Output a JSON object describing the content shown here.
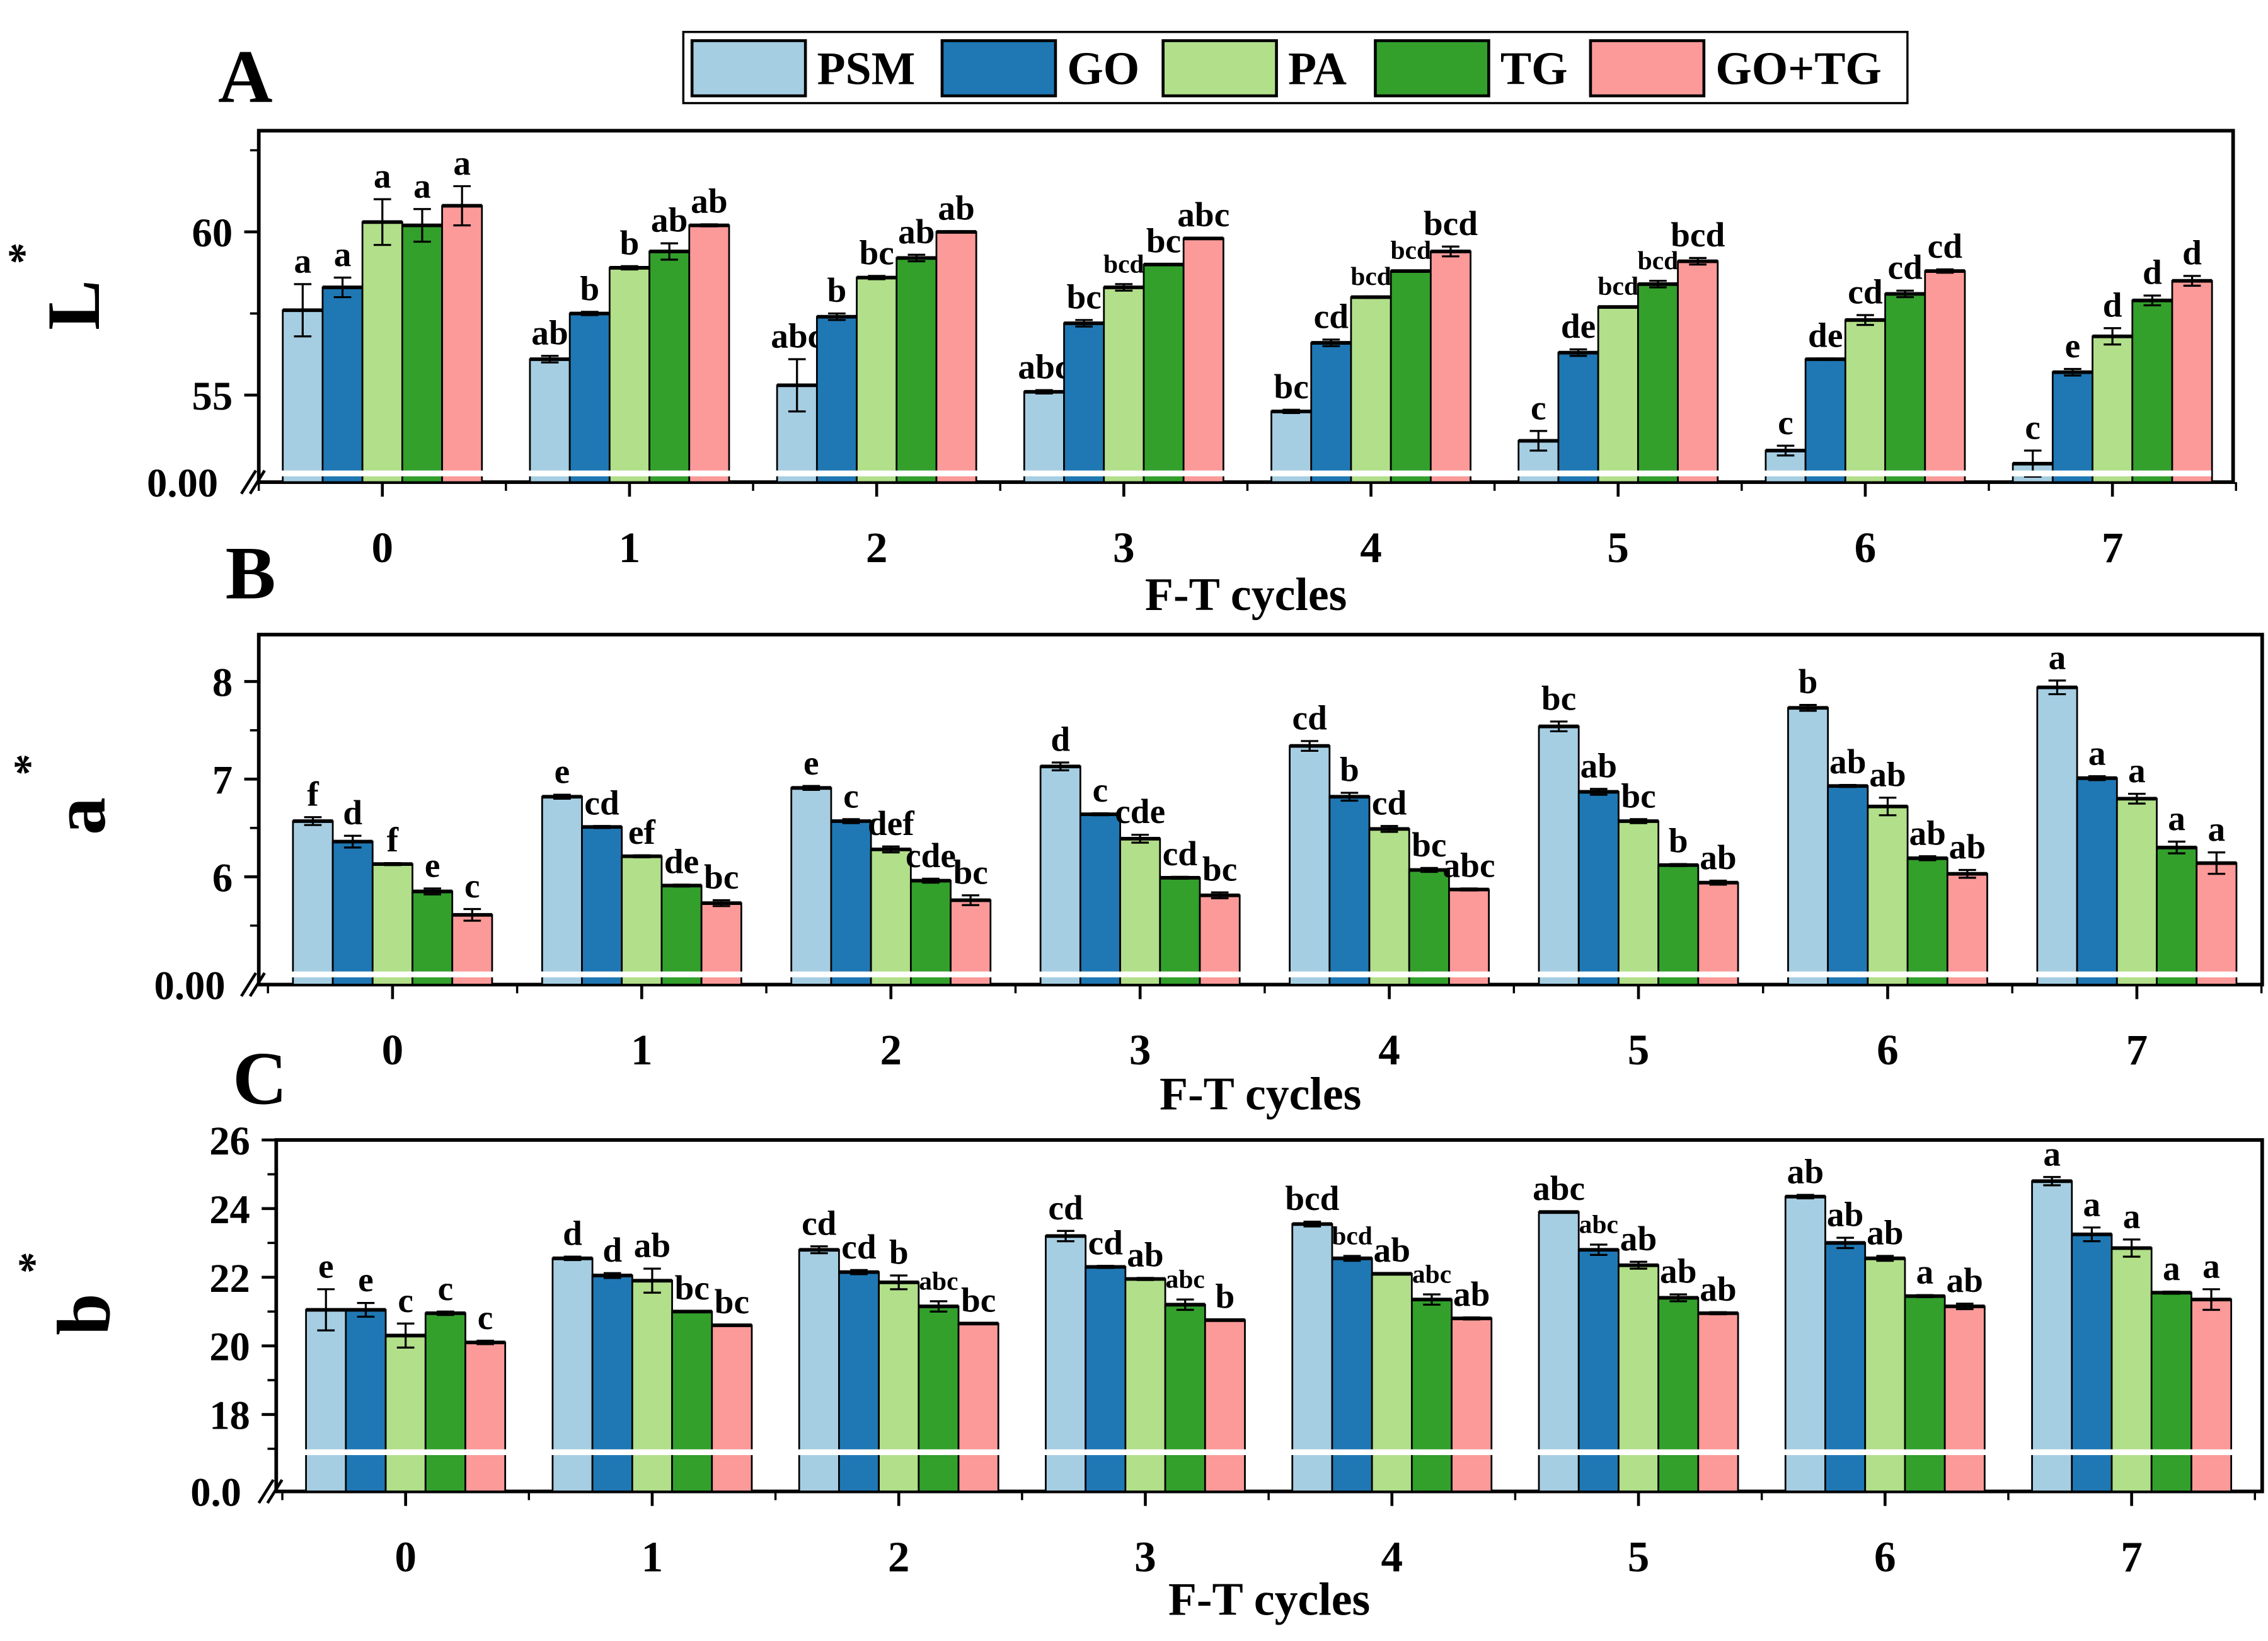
{
  "legend": [
    "PSM",
    "GO",
    "PA",
    "TG",
    "GO+TG"
  ],
  "colors": [
    "#a6cee3",
    "#1f78b4",
    "#b2df8a",
    "#33a02c",
    "#fb9a99"
  ],
  "chart_data": [
    {
      "type": "bar",
      "panel_label": "A",
      "ylabel": "L",
      "ylabel_sup": "*",
      "xlabel": "F-T cycles",
      "categories": [
        "0",
        "1",
        "2",
        "3",
        "4",
        "5",
        "6",
        "7"
      ],
      "ytick_labels": [
        "55",
        "60"
      ],
      "ytick_values": [
        55,
        60
      ],
      "axis_break_label": "0.00",
      "ylim": [
        52.6,
        63.1
      ],
      "series": [
        {
          "name": "PSM",
          "values": [
            57.6,
            56.1,
            55.3,
            55.1,
            54.5,
            53.6,
            53.3,
            52.9
          ],
          "errors": [
            0.8,
            0.1,
            0.8,
            0.05,
            0.05,
            0.3,
            0.15,
            0.4
          ],
          "letters": [
            "a",
            "ab",
            "abc",
            "abc",
            "bc",
            "c",
            "c",
            "c"
          ]
        },
        {
          "name": "GO",
          "values": [
            58.3,
            57.5,
            57.4,
            57.2,
            56.6,
            56.3,
            56.1,
            55.7
          ],
          "errors": [
            0.3,
            0.05,
            0.1,
            0.1,
            0.1,
            0.1,
            0.02,
            0.1
          ],
          "letters": [
            "a",
            "b",
            "b",
            "bc",
            "cd",
            "de",
            "de",
            "e"
          ]
        },
        {
          "name": "PA",
          "values": [
            60.3,
            58.9,
            58.6,
            58.3,
            58.0,
            57.7,
            57.3,
            56.8
          ],
          "errors": [
            0.7,
            0.05,
            0.05,
            0.1,
            0.02,
            0.02,
            0.15,
            0.25
          ],
          "letters": [
            "a",
            "b",
            "bc",
            "bcd",
            "bcd",
            "bcd",
            "cd",
            "d"
          ]
        },
        {
          "name": "TG",
          "values": [
            60.2,
            59.4,
            59.2,
            59.0,
            58.8,
            58.4,
            58.1,
            57.9
          ],
          "errors": [
            0.5,
            0.25,
            0.1,
            0.02,
            0.02,
            0.1,
            0.1,
            0.15
          ],
          "letters": [
            "a",
            "ab",
            "ab",
            "bc",
            "bcd",
            "bcd",
            "cd",
            "d"
          ]
        },
        {
          "name": "GO+TG",
          "values": [
            60.8,
            60.2,
            60.0,
            59.8,
            59.4,
            59.1,
            58.8,
            58.5
          ],
          "errors": [
            0.6,
            0.03,
            0.02,
            0.02,
            0.15,
            0.1,
            0.05,
            0.15
          ],
          "letters": [
            "a",
            "ab",
            "ab",
            "abc",
            "bcd",
            "bcd",
            "cd",
            "d"
          ]
        }
      ]
    },
    {
      "type": "bar",
      "panel_label": "B",
      "ylabel": "a",
      "ylabel_sup": "*",
      "xlabel": "F-T cycles",
      "categories": [
        "0",
        "1",
        "2",
        "3",
        "4",
        "5",
        "6",
        "7"
      ],
      "ytick_labels": [
        "6",
        "7",
        "8"
      ],
      "ytick_values": [
        6,
        7,
        8
      ],
      "axis_break_label": "0.00",
      "ylim": [
        5.0,
        8.48
      ],
      "series": [
        {
          "name": "PSM",
          "values": [
            6.57,
            6.82,
            6.91,
            7.13,
            7.34,
            7.54,
            7.73,
            7.94
          ],
          "errors": [
            0.04,
            0.02,
            0.02,
            0.04,
            0.05,
            0.05,
            0.03,
            0.07
          ],
          "letters": [
            "f",
            "e",
            "e",
            "d",
            "cd",
            "bc",
            "b",
            "a"
          ]
        },
        {
          "name": "GO",
          "values": [
            6.36,
            6.51,
            6.57,
            6.64,
            6.82,
            6.87,
            6.93,
            7.01
          ],
          "errors": [
            0.06,
            0.01,
            0.02,
            0.01,
            0.04,
            0.03,
            0.01,
            0.02
          ],
          "letters": [
            "d",
            "cd",
            "c",
            "c",
            "b",
            "ab",
            "ab",
            "a"
          ]
        },
        {
          "name": "PA",
          "values": [
            6.13,
            6.21,
            6.28,
            6.39,
            6.49,
            6.57,
            6.72,
            6.8
          ],
          "errors": [
            0.01,
            0.01,
            0.03,
            0.04,
            0.03,
            0.02,
            0.09,
            0.05
          ],
          "letters": [
            "f",
            "ef",
            "def",
            "cde",
            "cd",
            "bc",
            "ab",
            "a"
          ]
        },
        {
          "name": "TG",
          "values": [
            5.85,
            5.91,
            5.96,
            5.99,
            6.07,
            6.12,
            6.19,
            6.3
          ],
          "errors": [
            0.03,
            0.01,
            0.02,
            0.01,
            0.02,
            0.01,
            0.02,
            0.06
          ],
          "letters": [
            "e",
            "de",
            "cde",
            "cd",
            "bc",
            "b",
            "ab",
            "a"
          ]
        },
        {
          "name": "GO+TG",
          "values": [
            5.61,
            5.73,
            5.76,
            5.81,
            5.87,
            5.94,
            6.03,
            6.14
          ],
          "errors": [
            0.06,
            0.03,
            0.05,
            0.03,
            0.01,
            0.02,
            0.04,
            0.11
          ],
          "letters": [
            "c",
            "bc",
            "bc",
            "bc",
            "abc",
            "ab",
            "ab",
            "a"
          ]
        }
      ]
    },
    {
      "type": "bar",
      "panel_label": "C",
      "ylabel": "b",
      "ylabel_sup": "*",
      "xlabel": "F-T cycles",
      "categories": [
        "0",
        "1",
        "2",
        "3",
        "4",
        "5",
        "6",
        "7"
      ],
      "ytick_labels": [
        "18",
        "20",
        "22",
        "24",
        "26"
      ],
      "ytick_values": [
        18,
        20,
        22,
        24,
        26
      ],
      "axis_break_label": "0.0",
      "ylim": [
        16.9,
        26.0
      ],
      "series": [
        {
          "name": "PSM",
          "values": [
            21.05,
            22.55,
            22.8,
            23.2,
            23.55,
            23.9,
            24.35,
            24.8
          ],
          "errors": [
            0.6,
            0.05,
            0.1,
            0.15,
            0.07,
            0.02,
            0.05,
            0.12
          ],
          "letters": [
            "e",
            "d",
            "cd",
            "cd",
            "bcd",
            "abc",
            "ab",
            "a"
          ]
        },
        {
          "name": "GO",
          "values": [
            21.05,
            22.05,
            22.15,
            22.3,
            22.55,
            22.8,
            23.0,
            23.25
          ],
          "errors": [
            0.2,
            0.07,
            0.06,
            0.03,
            0.07,
            0.15,
            0.15,
            0.2
          ],
          "letters": [
            "e",
            "d",
            "cd",
            "cd",
            "bcd",
            "abc",
            "ab",
            "a"
          ]
        },
        {
          "name": "PA",
          "values": [
            20.3,
            21.9,
            21.85,
            21.95,
            22.1,
            22.35,
            22.55,
            22.85
          ],
          "errors": [
            0.35,
            0.35,
            0.2,
            0.03,
            0.02,
            0.1,
            0.07,
            0.25
          ],
          "letters": [
            "c",
            "ab",
            "b",
            "ab",
            "ab",
            "ab",
            "ab",
            "a"
          ]
        },
        {
          "name": "TG",
          "values": [
            20.95,
            21.0,
            21.15,
            21.2,
            21.35,
            21.4,
            21.45,
            21.55
          ],
          "errors": [
            0.05,
            0.01,
            0.15,
            0.15,
            0.15,
            0.1,
            0.03,
            0.03
          ],
          "letters": [
            "c",
            "bc",
            "abc",
            "abc",
            "abc",
            "ab",
            "a",
            "a"
          ]
        },
        {
          "name": "GO+TG",
          "values": [
            20.1,
            20.6,
            20.65,
            20.75,
            20.8,
            20.95,
            21.15,
            21.35
          ],
          "errors": [
            0.05,
            0.01,
            0.01,
            0.02,
            0.03,
            0.03,
            0.08,
            0.3
          ],
          "letters": [
            "c",
            "bc",
            "bc",
            "b",
            "ab",
            "ab",
            "ab",
            "a"
          ]
        }
      ]
    }
  ]
}
